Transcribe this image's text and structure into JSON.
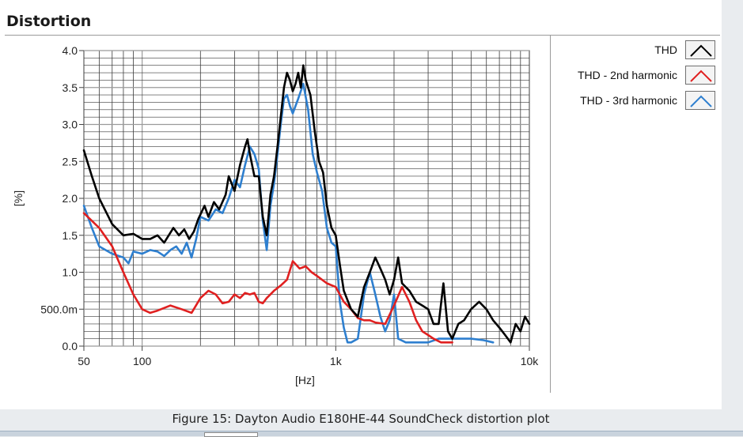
{
  "page": {
    "title": "Distortion",
    "caption": "Figure 15: Dayton Audio E180HE-44 SoundCheck distortion plot"
  },
  "legend": [
    {
      "label": "THD",
      "color": "#000000"
    },
    {
      "label": "THD - 2nd harmonic",
      "color": "#e02020"
    },
    {
      "label": "THD - 3rd harmonic",
      "color": "#2e7fcf"
    }
  ],
  "chart_data": {
    "type": "line",
    "title": "Distortion",
    "xlabel": "[Hz]",
    "ylabel": "[%]",
    "xscale": "log",
    "xlim": [
      50,
      10000
    ],
    "ylim": [
      0,
      4
    ],
    "grid": true,
    "legend_position": "right",
    "x_ticks": [
      {
        "value": 50,
        "label": "50"
      },
      {
        "value": 100,
        "label": "100"
      },
      {
        "value": 1000,
        "label": "1k"
      },
      {
        "value": 10000,
        "label": "10k"
      }
    ],
    "y_ticks": [
      {
        "value": 0,
        "label": "0.0"
      },
      {
        "value": 0.5,
        "label": "500.0m"
      },
      {
        "value": 1.0,
        "label": "1.0"
      },
      {
        "value": 1.5,
        "label": "1.5"
      },
      {
        "value": 2.0,
        "label": "2.0"
      },
      {
        "value": 2.5,
        "label": "2.5"
      },
      {
        "value": 3.0,
        "label": "3.0"
      },
      {
        "value": 3.5,
        "label": "3.5"
      },
      {
        "value": 4.0,
        "label": "4.0"
      }
    ],
    "series": [
      {
        "name": "THD",
        "color": "#000000",
        "points": [
          [
            50,
            2.65
          ],
          [
            55,
            2.3
          ],
          [
            60,
            2.0
          ],
          [
            70,
            1.65
          ],
          [
            80,
            1.5
          ],
          [
            90,
            1.52
          ],
          [
            100,
            1.45
          ],
          [
            110,
            1.45
          ],
          [
            120,
            1.5
          ],
          [
            130,
            1.4
          ],
          [
            145,
            1.6
          ],
          [
            155,
            1.5
          ],
          [
            165,
            1.58
          ],
          [
            175,
            1.45
          ],
          [
            185,
            1.55
          ],
          [
            195,
            1.72
          ],
          [
            210,
            1.9
          ],
          [
            220,
            1.75
          ],
          [
            235,
            1.95
          ],
          [
            250,
            1.85
          ],
          [
            270,
            2.05
          ],
          [
            280,
            2.3
          ],
          [
            300,
            2.1
          ],
          [
            320,
            2.45
          ],
          [
            340,
            2.7
          ],
          [
            350,
            2.8
          ],
          [
            360,
            2.6
          ],
          [
            380,
            2.3
          ],
          [
            400,
            2.3
          ],
          [
            420,
            1.75
          ],
          [
            440,
            1.5
          ],
          [
            460,
            2.05
          ],
          [
            480,
            2.3
          ],
          [
            500,
            2.7
          ],
          [
            520,
            3.1
          ],
          [
            540,
            3.5
          ],
          [
            560,
            3.7
          ],
          [
            580,
            3.6
          ],
          [
            600,
            3.45
          ],
          [
            620,
            3.55
          ],
          [
            640,
            3.7
          ],
          [
            660,
            3.5
          ],
          [
            680,
            3.8
          ],
          [
            700,
            3.6
          ],
          [
            740,
            3.4
          ],
          [
            780,
            2.9
          ],
          [
            820,
            2.5
          ],
          [
            860,
            2.35
          ],
          [
            900,
            1.9
          ],
          [
            950,
            1.6
          ],
          [
            1000,
            1.5
          ],
          [
            1050,
            1.1
          ],
          [
            1100,
            0.75
          ],
          [
            1200,
            0.5
          ],
          [
            1300,
            0.4
          ],
          [
            1400,
            0.8
          ],
          [
            1500,
            1.0
          ],
          [
            1600,
            1.2
          ],
          [
            1700,
            1.05
          ],
          [
            1800,
            0.9
          ],
          [
            1900,
            0.7
          ],
          [
            2000,
            0.9
          ],
          [
            2100,
            1.2
          ],
          [
            2200,
            0.85
          ],
          [
            2400,
            0.75
          ],
          [
            2600,
            0.6
          ],
          [
            2800,
            0.55
          ],
          [
            3000,
            0.5
          ],
          [
            3200,
            0.3
          ],
          [
            3400,
            0.3
          ],
          [
            3600,
            0.85
          ],
          [
            3800,
            0.2
          ],
          [
            4000,
            0.1
          ],
          [
            4300,
            0.3
          ],
          [
            4600,
            0.35
          ],
          [
            5000,
            0.5
          ],
          [
            5500,
            0.6
          ],
          [
            6000,
            0.5
          ],
          [
            6500,
            0.35
          ],
          [
            7000,
            0.25
          ],
          [
            7500,
            0.15
          ],
          [
            8000,
            0.05
          ],
          [
            8500,
            0.3
          ],
          [
            9000,
            0.2
          ],
          [
            9500,
            0.4
          ],
          [
            10000,
            0.3
          ]
        ]
      },
      {
        "name": "THD - 2nd harmonic",
        "color": "#e02020",
        "points": [
          [
            50,
            1.8
          ],
          [
            60,
            1.6
          ],
          [
            70,
            1.35
          ],
          [
            80,
            1.0
          ],
          [
            90,
            0.7
          ],
          [
            100,
            0.5
          ],
          [
            110,
            0.45
          ],
          [
            120,
            0.48
          ],
          [
            140,
            0.55
          ],
          [
            160,
            0.5
          ],
          [
            180,
            0.45
          ],
          [
            200,
            0.65
          ],
          [
            220,
            0.75
          ],
          [
            240,
            0.7
          ],
          [
            260,
            0.58
          ],
          [
            280,
            0.6
          ],
          [
            300,
            0.7
          ],
          [
            320,
            0.65
          ],
          [
            340,
            0.72
          ],
          [
            360,
            0.7
          ],
          [
            380,
            0.72
          ],
          [
            400,
            0.6
          ],
          [
            420,
            0.58
          ],
          [
            440,
            0.65
          ],
          [
            480,
            0.75
          ],
          [
            520,
            0.82
          ],
          [
            560,
            0.9
          ],
          [
            600,
            1.15
          ],
          [
            650,
            1.05
          ],
          [
            700,
            1.08
          ],
          [
            750,
            1.0
          ],
          [
            800,
            0.95
          ],
          [
            900,
            0.85
          ],
          [
            1000,
            0.8
          ],
          [
            1100,
            0.6
          ],
          [
            1200,
            0.5
          ],
          [
            1300,
            0.38
          ],
          [
            1400,
            0.35
          ],
          [
            1500,
            0.35
          ],
          [
            1600,
            0.32
          ],
          [
            1800,
            0.3
          ],
          [
            2000,
            0.55
          ],
          [
            2200,
            0.8
          ],
          [
            2400,
            0.6
          ],
          [
            2600,
            0.35
          ],
          [
            2800,
            0.2
          ],
          [
            3000,
            0.15
          ],
          [
            3200,
            0.1
          ],
          [
            3500,
            0.05
          ],
          [
            4000,
            0.05
          ]
        ]
      },
      {
        "name": "THD - 3rd harmonic",
        "color": "#2e7fcf",
        "points": [
          [
            50,
            1.9
          ],
          [
            55,
            1.6
          ],
          [
            60,
            1.35
          ],
          [
            70,
            1.25
          ],
          [
            80,
            1.2
          ],
          [
            85,
            1.12
          ],
          [
            90,
            1.28
          ],
          [
            100,
            1.25
          ],
          [
            110,
            1.3
          ],
          [
            120,
            1.28
          ],
          [
            130,
            1.22
          ],
          [
            140,
            1.3
          ],
          [
            150,
            1.35
          ],
          [
            160,
            1.25
          ],
          [
            170,
            1.4
          ],
          [
            180,
            1.2
          ],
          [
            190,
            1.45
          ],
          [
            200,
            1.75
          ],
          [
            220,
            1.7
          ],
          [
            240,
            1.85
          ],
          [
            260,
            1.8
          ],
          [
            280,
            2.0
          ],
          [
            300,
            2.25
          ],
          [
            320,
            2.15
          ],
          [
            340,
            2.45
          ],
          [
            360,
            2.7
          ],
          [
            380,
            2.6
          ],
          [
            400,
            2.4
          ],
          [
            420,
            1.7
          ],
          [
            440,
            1.3
          ],
          [
            460,
            1.9
          ],
          [
            480,
            2.2
          ],
          [
            500,
            2.6
          ],
          [
            520,
            3.0
          ],
          [
            540,
            3.35
          ],
          [
            560,
            3.4
          ],
          [
            580,
            3.25
          ],
          [
            600,
            3.15
          ],
          [
            640,
            3.35
          ],
          [
            680,
            3.55
          ],
          [
            720,
            3.2
          ],
          [
            760,
            2.6
          ],
          [
            800,
            2.35
          ],
          [
            850,
            2.1
          ],
          [
            900,
            1.6
          ],
          [
            950,
            1.4
          ],
          [
            1000,
            1.35
          ],
          [
            1050,
            0.6
          ],
          [
            1100,
            0.25
          ],
          [
            1150,
            0.05
          ],
          [
            1200,
            0.05
          ],
          [
            1300,
            0.1
          ],
          [
            1400,
            0.7
          ],
          [
            1500,
            1.0
          ],
          [
            1600,
            0.7
          ],
          [
            1700,
            0.4
          ],
          [
            1800,
            0.2
          ],
          [
            1900,
            0.35
          ],
          [
            2000,
            0.7
          ],
          [
            2100,
            0.1
          ],
          [
            2300,
            0.05
          ],
          [
            2600,
            0.05
          ],
          [
            3000,
            0.05
          ],
          [
            3400,
            0.1
          ],
          [
            3800,
            0.1
          ],
          [
            4300,
            0.1
          ],
          [
            5000,
            0.1
          ],
          [
            5800,
            0.08
          ],
          [
            6500,
            0.05
          ]
        ]
      }
    ]
  }
}
